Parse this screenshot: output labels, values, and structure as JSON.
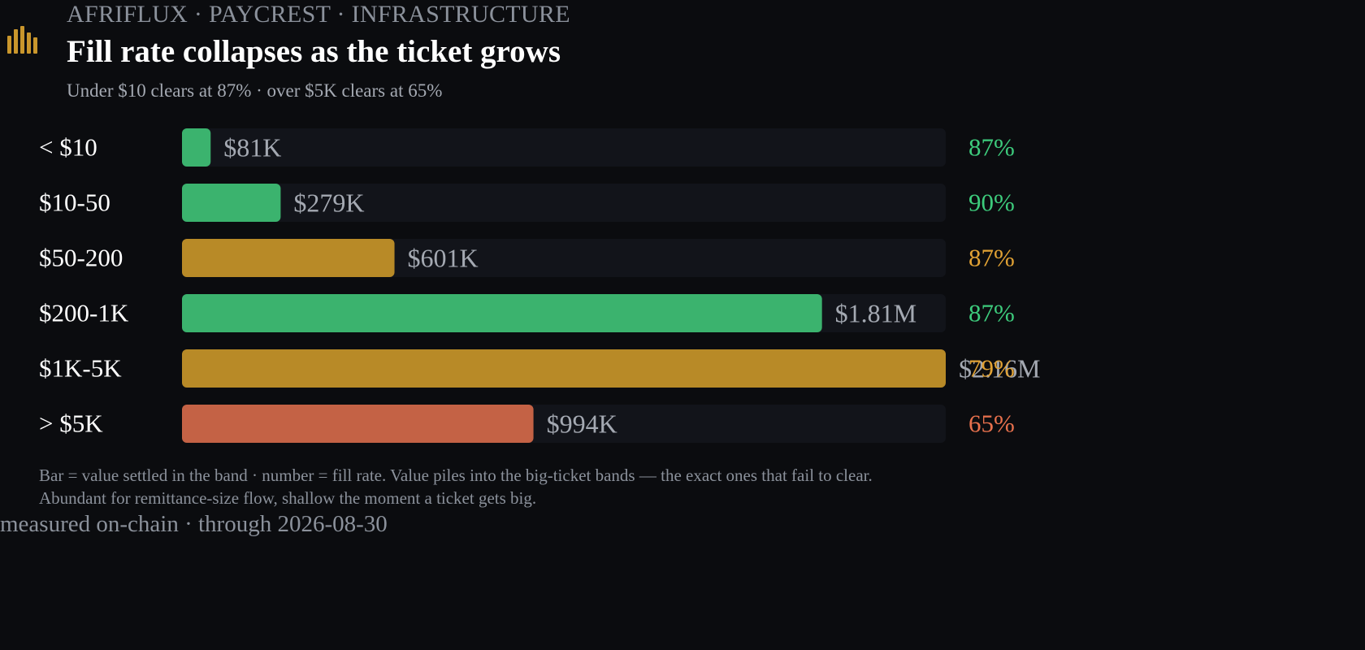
{
  "header": {
    "eyebrow": "AFRIFLUX · PAYCREST · INFRASTRUCTURE",
    "title": "Fill rate collapses as the ticket grows",
    "subtitle": "Under $10 clears at 87% · over $5K clears at 65%"
  },
  "logo_icon": "bar-chart-icon",
  "colors": {
    "background": "#0b0c0f",
    "track": "#12141a",
    "green": "#3bb36e",
    "amber": "#b88a27",
    "red": "#c46245",
    "green_text": "#3dcb7c",
    "amber_text": "#e1a234",
    "red_text": "#e8714d",
    "value_label": "#a4a9b2"
  },
  "chart_data": {
    "type": "bar",
    "orientation": "horizontal",
    "categories": [
      "< $10",
      "$10-50",
      "$50-200",
      "$200-1K",
      "$1K-5K",
      "> $5K"
    ],
    "values": [
      81,
      279,
      601,
      1810,
      2160,
      994
    ],
    "value_unit": "thousand USD settled",
    "value_labels": [
      "$81K",
      "$279K",
      "$601K",
      "$1.81M",
      "$2.16M",
      "$994K"
    ],
    "fill_rates": [
      87,
      90,
      87,
      87,
      79,
      65
    ],
    "fill_rate_labels": [
      "87%",
      "90%",
      "87%",
      "87%",
      "79%",
      "65%"
    ],
    "bar_colors": [
      "green",
      "green",
      "amber",
      "green",
      "amber",
      "red"
    ],
    "xlim": [
      0,
      2160
    ],
    "grid": false,
    "legend": "none"
  },
  "footnote": {
    "line1": "Bar = value settled in the band · number = fill rate. Value piles into the big-ticket bands — the exact ones that fail to clear.",
    "line2": "Abundant for remittance-size flow, shallow the moment a ticket gets big."
  },
  "source": "measured on-chain · through 2026-08-30"
}
